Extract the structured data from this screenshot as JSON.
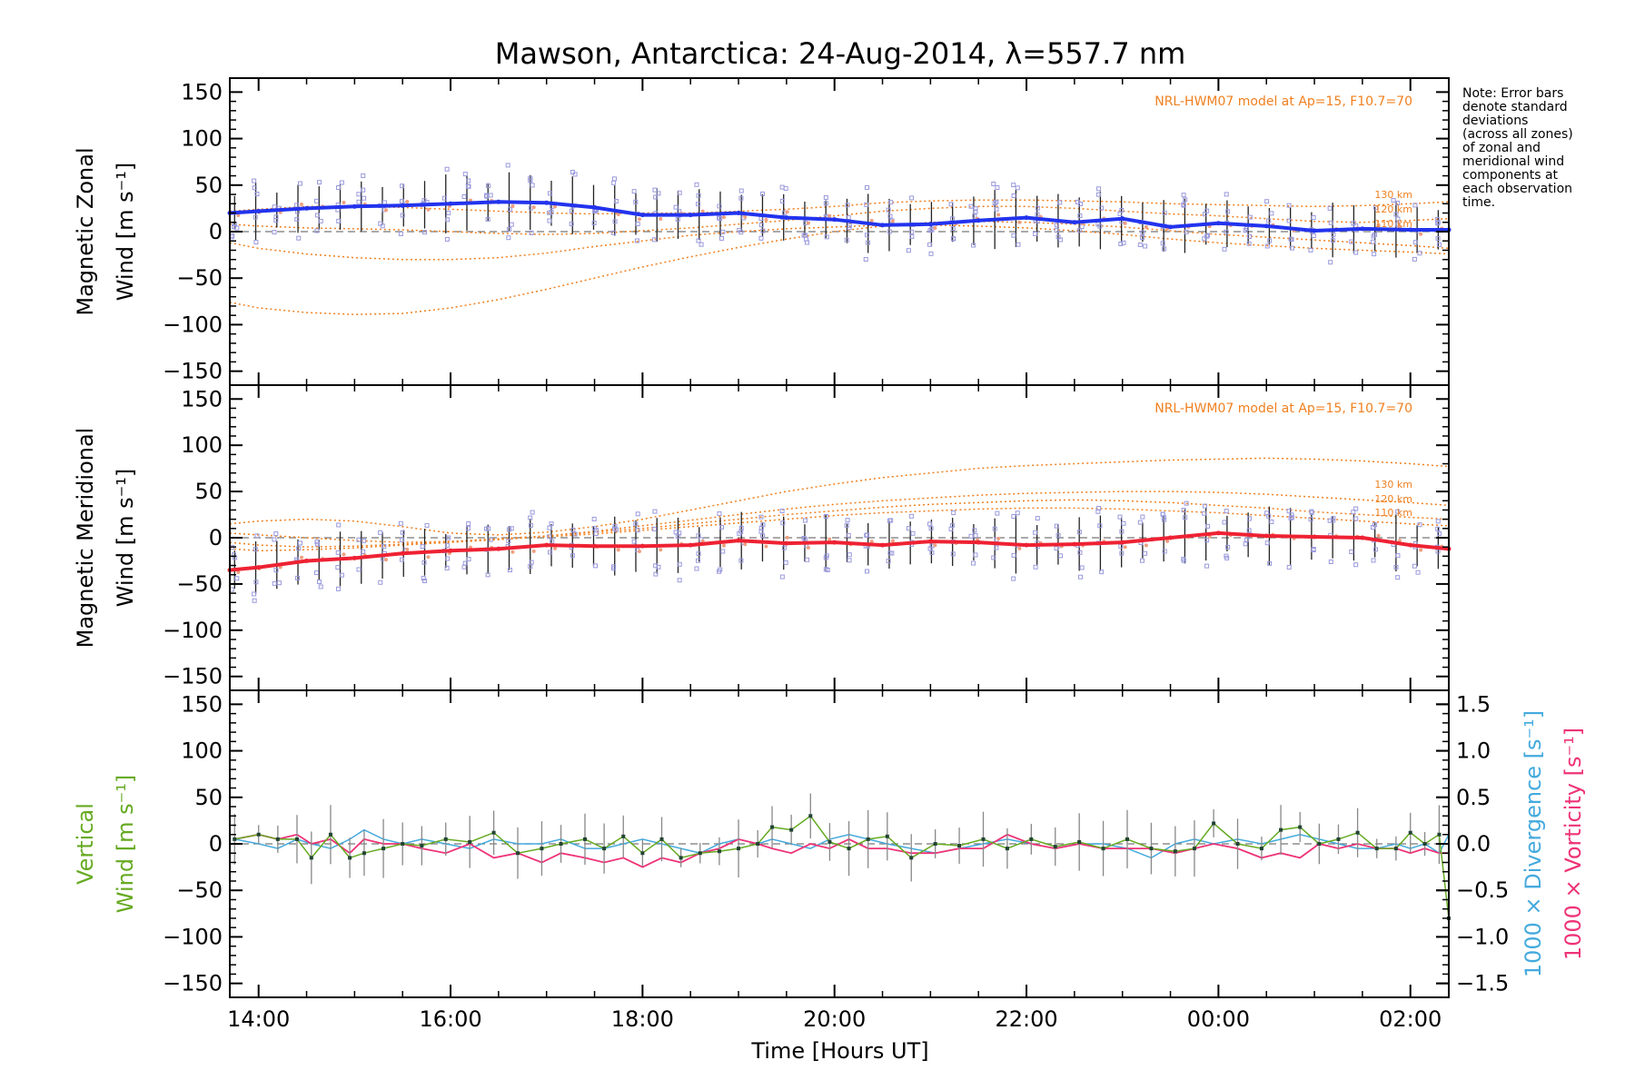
{
  "title": "Mawson, Antarctica: 24-Aug-2014, λ=557.7 nm",
  "note_lines": [
    "Note: Error bars",
    "denote standard",
    "deviations",
    "(across all zones)",
    "of zonal and",
    "meridional wind",
    "components at",
    "each observation",
    "time."
  ],
  "model_label": "NRL-HWM07 model at Ap=15, F10.7=70",
  "altitude_labels": [
    "130 km",
    "120 km",
    "110 km"
  ],
  "colors": {
    "zonal": "#2233ee",
    "meridional": "#ee2233",
    "vertical": "#66aa22",
    "divergence": "#44aadd",
    "vorticity": "#ee3377",
    "model": "#f08020",
    "scatter": "#9999dd",
    "axis": "#000000"
  },
  "chart_data": [
    {
      "type": "line",
      "panel": "zonal",
      "ylabel_line1": "Magnetic Zonal",
      "ylabel_line2": "Wind [m s⁻¹]",
      "ylim": [
        -165,
        165
      ],
      "yticks": [
        150,
        100,
        50,
        0,
        -50,
        -100,
        -150
      ],
      "ytick_labels": [
        "150",
        "100",
        "50",
        "0",
        "−50",
        "−100",
        "−150"
      ],
      "x_hours_ut": [
        13.7,
        14.0,
        14.5,
        15.0,
        15.5,
        16.0,
        16.5,
        17.0,
        17.5,
        18.0,
        18.5,
        19.0,
        19.5,
        20.0,
        20.5,
        21.0,
        21.5,
        22.0,
        22.5,
        23.0,
        23.5,
        24.0,
        24.5,
        25.0,
        25.5,
        26.0,
        26.4
      ],
      "series": [
        {
          "role": "observed",
          "values": [
            20,
            22,
            25,
            27,
            28,
            30,
            32,
            31,
            26,
            18,
            18,
            20,
            15,
            13,
            7,
            8,
            12,
            15,
            10,
            14,
            5,
            9,
            6,
            1,
            3,
            2,
            2
          ]
        },
        {
          "role": "model-130",
          "values": [
            22,
            24,
            27,
            27,
            26,
            24,
            22,
            20,
            19,
            20,
            20,
            22,
            24,
            27,
            31,
            33,
            34,
            34,
            33,
            32,
            30,
            29,
            28,
            27,
            28,
            30,
            32
          ]
        },
        {
          "role": "model-120",
          "values": [
            8,
            6,
            4,
            3,
            2,
            0,
            -2,
            -3,
            -2,
            1,
            4,
            8,
            12,
            17,
            22,
            25,
            27,
            27,
            25,
            22,
            19,
            17,
            14,
            11,
            10,
            12,
            14
          ]
        },
        {
          "role": "model-110",
          "values": [
            -12,
            -18,
            -24,
            -28,
            -30,
            -30,
            -28,
            -23,
            -16,
            -10,
            -4,
            0,
            3,
            5,
            7,
            7,
            6,
            4,
            1,
            -3,
            -8,
            -12,
            -15,
            -18,
            -20,
            -22,
            -24
          ]
        },
        {
          "role": "model-low",
          "values": [
            -76,
            -82,
            -87,
            -89,
            -88,
            -82,
            -73,
            -62,
            -50,
            -38,
            -27,
            -17,
            -8,
            0,
            6,
            10,
            11,
            10,
            8,
            5,
            1,
            -3,
            -6,
            -9,
            -12,
            -15,
            -18
          ]
        }
      ]
    },
    {
      "type": "line",
      "panel": "meridional",
      "ylabel_line1": "Magnetic Meridional",
      "ylabel_line2": "Wind [m s⁻¹]",
      "ylim": [
        -165,
        165
      ],
      "yticks": [
        150,
        100,
        50,
        0,
        -50,
        -100,
        -150
      ],
      "ytick_labels": [
        "150",
        "100",
        "50",
        "0",
        "−50",
        "−100",
        "−150"
      ],
      "x_hours_ut": [
        13.7,
        14.0,
        14.5,
        15.0,
        15.5,
        16.0,
        16.5,
        17.0,
        17.5,
        18.0,
        18.5,
        19.0,
        19.5,
        20.0,
        20.5,
        21.0,
        21.5,
        22.0,
        22.5,
        23.0,
        23.5,
        24.0,
        24.5,
        25.0,
        25.5,
        26.0,
        26.4
      ],
      "series": [
        {
          "role": "observed",
          "values": [
            -35,
            -32,
            -25,
            -22,
            -17,
            -14,
            -12,
            -8,
            -9,
            -9,
            -8,
            -3,
            -6,
            -5,
            -8,
            -4,
            -5,
            -8,
            -7,
            -5,
            0,
            5,
            2,
            1,
            0,
            -8,
            -12
          ]
        },
        {
          "role": "model-high",
          "values": [
            15,
            18,
            20,
            18,
            12,
            5,
            3,
            6,
            12,
            20,
            30,
            40,
            50,
            58,
            65,
            70,
            75,
            78,
            80,
            82,
            84,
            85,
            86,
            85,
            83,
            80,
            77
          ]
        },
        {
          "role": "model-130",
          "values": [
            5,
            3,
            0,
            -3,
            -5,
            -4,
            -2,
            2,
            7,
            13,
            19,
            25,
            31,
            36,
            40,
            43,
            46,
            48,
            49,
            50,
            50,
            49,
            47,
            44,
            41,
            38,
            35
          ]
        },
        {
          "role": "model-120",
          "values": [
            -5,
            -8,
            -10,
            -9,
            -7,
            -4,
            -1,
            2,
            6,
            10,
            15,
            20,
            25,
            29,
            33,
            36,
            38,
            40,
            41,
            40,
            38,
            35,
            32,
            28,
            25,
            22,
            20
          ]
        },
        {
          "role": "model-110",
          "values": [
            -12,
            -14,
            -13,
            -11,
            -8,
            -5,
            -2,
            1,
            4,
            8,
            12,
            16,
            20,
            24,
            27,
            29,
            31,
            32,
            32,
            31,
            29,
            27,
            24,
            21,
            18,
            15,
            13
          ]
        }
      ]
    },
    {
      "type": "line",
      "panel": "vertical",
      "ylabel_line1": "Vertical",
      "ylabel_line2": "Wind [m s⁻¹]",
      "ylabel2_div": "1000 × Divergence [s⁻¹]",
      "ylabel2_vort": "1000 × Vorticity [s⁻¹]",
      "ylim": [
        -165,
        165
      ],
      "yticks": [
        150,
        100,
        50,
        0,
        -50,
        -100,
        -150
      ],
      "ytick_labels": [
        "150",
        "100",
        "50",
        "0",
        "−50",
        "−100",
        "−150"
      ],
      "y2lim": [
        -1.65,
        1.65
      ],
      "y2ticks": [
        1.5,
        1.0,
        0.5,
        0.0,
        -0.5,
        -1.0,
        -1.5
      ],
      "y2tick_labels": [
        "1.5",
        "1.0",
        "0.5",
        "0.0",
        "−0.5",
        "−1.0",
        "−1.5"
      ],
      "x_hours_ut": [
        13.75,
        14.0,
        14.2,
        14.4,
        14.55,
        14.75,
        14.95,
        15.1,
        15.3,
        15.5,
        15.7,
        15.95,
        16.2,
        16.45,
        16.7,
        16.95,
        17.15,
        17.4,
        17.6,
        17.8,
        18.0,
        18.2,
        18.4,
        18.6,
        18.8,
        19.0,
        19.2,
        19.35,
        19.55,
        19.75,
        19.95,
        20.15,
        20.35,
        20.55,
        20.8,
        21.05,
        21.3,
        21.55,
        21.8,
        22.05,
        22.3,
        22.55,
        22.8,
        23.05,
        23.3,
        23.55,
        23.75,
        23.95,
        24.2,
        24.45,
        24.65,
        24.85,
        25.05,
        25.25,
        25.45,
        25.65,
        25.85,
        26.0,
        26.15,
        26.3,
        26.4
      ],
      "series": [
        {
          "role": "vertical-wind",
          "values": [
            5,
            10,
            5,
            5,
            -15,
            10,
            -15,
            -10,
            -5,
            0,
            -2,
            5,
            2,
            12,
            -10,
            -5,
            0,
            5,
            -5,
            8,
            -10,
            5,
            -15,
            -10,
            -8,
            -5,
            0,
            18,
            15,
            30,
            2,
            -5,
            5,
            8,
            -15,
            0,
            -2,
            5,
            -5,
            5,
            -3,
            2,
            -5,
            5,
            -5,
            -8,
            -5,
            22,
            0,
            -5,
            15,
            18,
            0,
            5,
            12,
            -5,
            -5,
            12,
            0,
            10,
            -80
          ]
        },
        {
          "role": "divergence",
          "values": [
            0.05,
            0.0,
            -0.05,
            0.05,
            0.0,
            -0.05,
            0.05,
            0.15,
            0.05,
            0.0,
            0.05,
            0.0,
            -0.05,
            0.05,
            0.0,
            0.0,
            0.05,
            -0.05,
            -0.05,
            0.0,
            0.05,
            0.0,
            -0.05,
            -0.1,
            0.0,
            0.05,
            0.0,
            0.05,
            0.0,
            -0.05,
            0.05,
            0.1,
            0.05,
            0.0,
            -0.05,
            -0.1,
            -0.05,
            0.0,
            0.05,
            0.0,
            -0.05,
            0.0,
            0.0,
            -0.05,
            -0.15,
            0.0,
            0.05,
            0.0,
            0.05,
            0.0,
            0.05,
            0.1,
            0.05,
            0.0,
            -0.05,
            -0.05,
            0.0,
            -0.05,
            0.0,
            -0.1,
            0.1
          ]
        },
        {
          "role": "vorticity",
          "values": [
            0.05,
            0.1,
            0.05,
            0.1,
            0.0,
            0.05,
            -0.1,
            0.05,
            0.0,
            0.0,
            -0.05,
            -0.1,
            0.0,
            -0.15,
            -0.1,
            -0.2,
            -0.1,
            -0.15,
            -0.2,
            -0.15,
            -0.25,
            -0.15,
            -0.2,
            -0.1,
            -0.05,
            0.05,
            0.0,
            -0.05,
            -0.1,
            0.0,
            -0.05,
            0.05,
            -0.05,
            -0.05,
            -0.1,
            -0.1,
            -0.05,
            -0.05,
            0.1,
            0.0,
            -0.05,
            0.0,
            -0.05,
            -0.05,
            -0.05,
            -0.1,
            -0.05,
            0.0,
            -0.05,
            -0.15,
            -0.1,
            -0.15,
            0.0,
            -0.05,
            0.0,
            -0.05,
            -0.05,
            -0.1,
            -0.05,
            -0.1,
            -0.1
          ]
        }
      ]
    }
  ],
  "x_axis": {
    "label": "Time [Hours UT]",
    "xlim": [
      13.7,
      26.4
    ],
    "ticks": [
      14,
      16,
      18,
      20,
      22,
      24,
      26
    ],
    "tick_labels": [
      "14:00",
      "16:00",
      "18:00",
      "20:00",
      "22:00",
      "00:00",
      "02:00"
    ]
  }
}
